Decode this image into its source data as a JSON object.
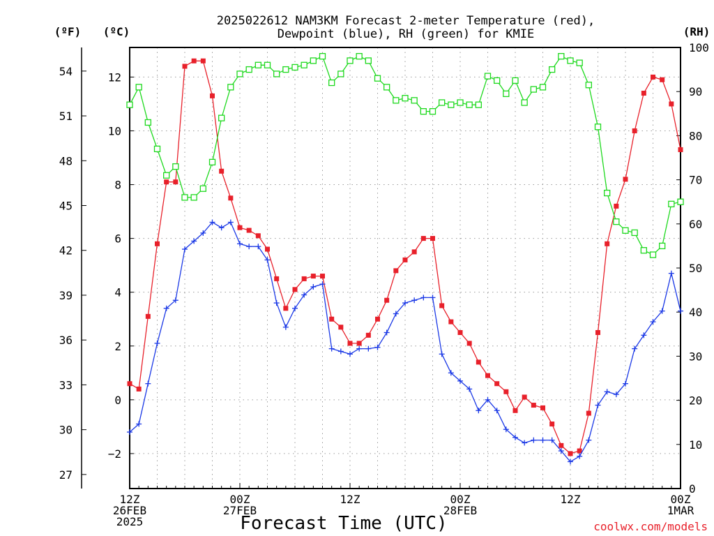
{
  "chart_data": {
    "type": "line",
    "title": [
      "2025022612 NAM3KM Forecast 2-meter Temperature (red),",
      "Dewpoint (blue), RH (green) for KMIE"
    ],
    "xlabel": "Forecast Time (UTC)",
    "credit": "coolwx.com/models",
    "x_hours_from_start": [
      0,
      1,
      2,
      3,
      4,
      5,
      6,
      7,
      8,
      9,
      10,
      11,
      12,
      13,
      14,
      15,
      16,
      17,
      18,
      19,
      20,
      21,
      22,
      23,
      24,
      25,
      26,
      27,
      28,
      29,
      30,
      31,
      32,
      33,
      34,
      35,
      36,
      37,
      38,
      39,
      40,
      41,
      42,
      43,
      44,
      45,
      46,
      47,
      48,
      49,
      50,
      51,
      52,
      53,
      54,
      55,
      56,
      57,
      58,
      59,
      60
    ],
    "x_ticks": [
      {
        "hour": 0,
        "label": [
          "12Z",
          "26FEB",
          "2025"
        ]
      },
      {
        "hour": 12,
        "label": [
          "00Z",
          "27FEB"
        ]
      },
      {
        "hour": 24,
        "label": [
          "12Z"
        ]
      },
      {
        "hour": 36,
        "label": [
          "00Z",
          "28FEB"
        ]
      },
      {
        "hour": 48,
        "label": [
          "12Z"
        ]
      },
      {
        "hour": 60,
        "label": [
          "00Z",
          "1MAR"
        ]
      }
    ],
    "xlim": [
      0,
      60
    ],
    "left_axis_c": {
      "label": "(ºC)",
      "ylim": [
        -3.3,
        13.1
      ],
      "ticks": [
        -2,
        0,
        2,
        4,
        6,
        8,
        10,
        12
      ],
      "tick_labels": [
        "−2",
        "0",
        "2",
        "4",
        "6",
        "8",
        "10",
        "12"
      ]
    },
    "left_axis_f": {
      "label": "(ºF)",
      "ticks": [
        27,
        30,
        33,
        36,
        39,
        42,
        45,
        48,
        51,
        54
      ]
    },
    "right_axis_rh": {
      "label": "(RH)",
      "ylim": [
        0,
        100
      ],
      "ticks": [
        0,
        10,
        20,
        30,
        40,
        50,
        60,
        70,
        80,
        90,
        100
      ]
    },
    "grid": true,
    "series": [
      {
        "name": "Temperature",
        "color": "#e8202a",
        "marker": "filled-square",
        "axis": "c",
        "values": [
          0.6,
          0.4,
          3.1,
          5.8,
          8.1,
          8.1,
          12.4,
          12.6,
          12.6,
          11.3,
          8.5,
          7.5,
          6.4,
          6.3,
          6.1,
          5.6,
          4.5,
          3.4,
          4.1,
          4.5,
          4.6,
          4.6,
          3.0,
          2.7,
          2.1,
          2.1,
          2.4,
          3.0,
          3.7,
          4.8,
          5.2,
          5.5,
          6.0,
          6.0,
          3.5,
          2.9,
          2.5,
          2.1,
          1.4,
          0.9,
          0.6,
          0.3,
          -0.4,
          0.1,
          -0.2,
          -0.3,
          -0.9,
          -1.7,
          -2.0,
          -1.9,
          -0.5,
          2.5,
          5.8,
          7.2,
          8.2,
          10.0,
          11.4,
          12.0,
          11.9,
          11.0,
          9.3
        ]
      },
      {
        "name": "Dewpoint",
        "color": "#1a38e6",
        "marker": "plus",
        "axis": "c",
        "values": [
          -1.2,
          -0.9,
          0.6,
          2.1,
          3.4,
          3.7,
          5.6,
          5.9,
          6.2,
          6.6,
          6.4,
          6.6,
          5.8,
          5.7,
          5.7,
          5.2,
          3.6,
          2.7,
          3.4,
          3.9,
          4.2,
          4.3,
          1.9,
          1.8,
          1.7,
          1.9,
          1.9,
          1.95,
          2.5,
          3.2,
          3.6,
          3.7,
          3.8,
          3.8,
          1.7,
          1.0,
          0.7,
          0.4,
          -0.4,
          0.0,
          -0.4,
          -1.1,
          -1.4,
          -1.6,
          -1.5,
          -1.5,
          -1.5,
          -1.9,
          -2.3,
          -2.1,
          -1.5,
          -0.2,
          0.3,
          0.2,
          0.6,
          1.9,
          2.4,
          2.9,
          3.3,
          4.7,
          3.3
        ]
      },
      {
        "name": "RH",
        "color": "#1dd91d",
        "marker": "open-square",
        "axis": "rh",
        "values": [
          87,
          91,
          83,
          77,
          71,
          73,
          66,
          66,
          68,
          74,
          84,
          91,
          94,
          95,
          96,
          96,
          94,
          95,
          95.5,
          96,
          97,
          98,
          92,
          94,
          97,
          98,
          97,
          93,
          91,
          88,
          88.5,
          88,
          85.5,
          85.5,
          87.5,
          87,
          87.5,
          87,
          87,
          93.5,
          92.5,
          89.5,
          92.5,
          87.5,
          90.5,
          91,
          95,
          98,
          97,
          96.5,
          91.5,
          82,
          67,
          60.5,
          58.5,
          58,
          54,
          53,
          55,
          64.5,
          65
        ]
      }
    ]
  }
}
